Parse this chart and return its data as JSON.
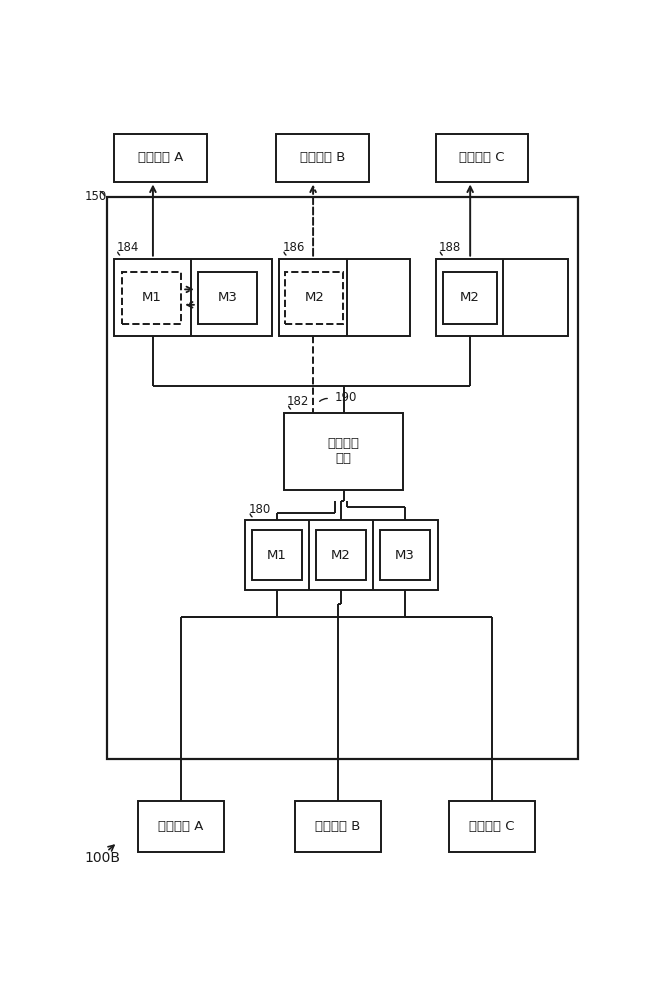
{
  "bg_color": "#ffffff",
  "line_color": "#1a1a1a",
  "fig_width": 6.68,
  "fig_height": 10.0,
  "label_100B": "100B",
  "label_150": "150",
  "label_182": "182",
  "label_184": "184",
  "label_186": "186",
  "label_188": "188",
  "label_190": "190",
  "label_180": "180",
  "text_terminal_A": "终端设备 A",
  "text_terminal_B": "终端设备 B",
  "text_terminal_C": "终端设备 C",
  "text_network_A": "网络设备 A",
  "text_network_B": "网络设备 B",
  "text_network_C": "网络设备 C",
  "text_comm_sys": "通信处理\n系统",
  "text_M1": "M1",
  "text_M2": "M2",
  "text_M3": "M3",
  "font_size_label": 8.5,
  "font_size_box": 9.5,
  "font_size_module": 9
}
